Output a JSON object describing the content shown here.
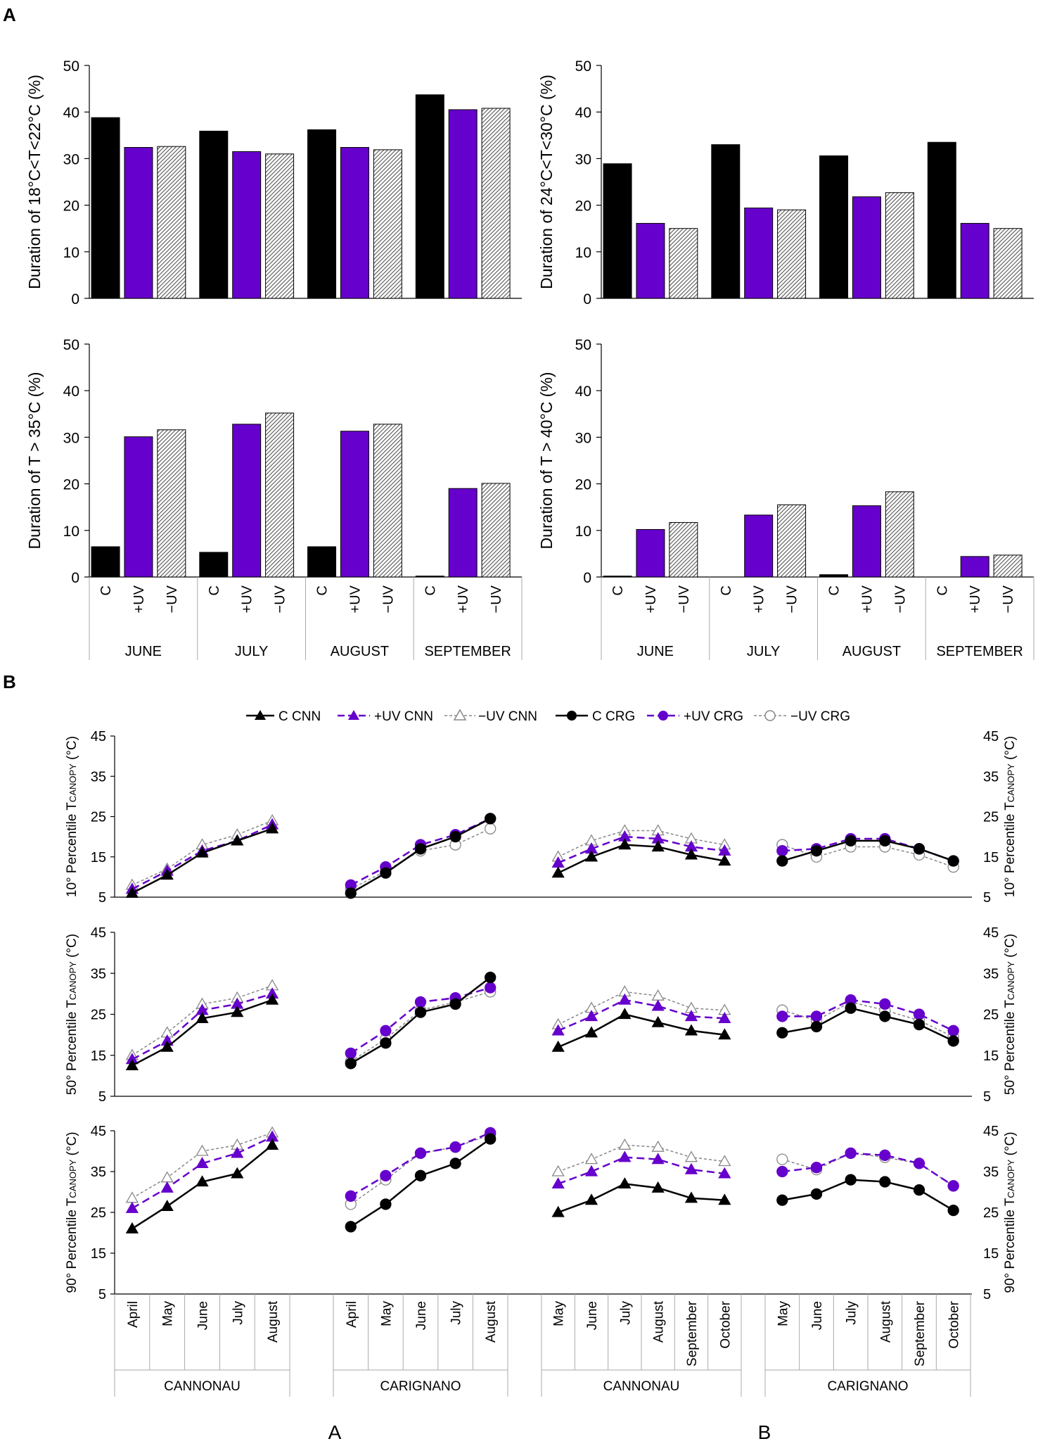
{
  "panel_labels": {
    "a": "A",
    "b": "B"
  },
  "sub_labels": {
    "left": "A",
    "right": "B"
  },
  "legend": {
    "c_cnn": "C CNN",
    "uvp_cnn": "+UV CNN",
    "uvm_cnn": "−UV CNN",
    "c_crg": "C CRG",
    "uvp_crg": "+UV CRG",
    "uvm_crg": "−UV CRG"
  },
  "colors": {
    "control": "#000000",
    "plus_uv": "#6600cc",
    "minus_uv": "#999999",
    "hatch": "#555555"
  },
  "bar_categories": {
    "treatments": [
      "C",
      "+UV",
      "−UV"
    ],
    "months": [
      "JUNE",
      "JULY",
      "AUGUST",
      "SEPTEMBER"
    ]
  },
  "line_groups": {
    "A": {
      "varieties": [
        "CANNONAU",
        "CARIGNANO"
      ],
      "months": [
        "April",
        "May",
        "June",
        "July",
        "August"
      ]
    },
    "B": {
      "varieties": [
        "CANNONAU",
        "CARIGNANO"
      ],
      "months": [
        "May",
        "June",
        "July",
        "August",
        "September",
        "October"
      ]
    }
  },
  "line_ylabels": {
    "p10": {
      "pre": "10° Percentile T",
      "sub": "CANOPY",
      "post": " (°C)"
    },
    "p50": {
      "pre": "50° Percentile T",
      "sub": "CANOPY",
      "post": " (°C)"
    },
    "p90": {
      "pre": "90° Percentile T",
      "sub": "CANOPY",
      "post": " (°C)"
    }
  },
  "chart_data": [
    {
      "type": "bar",
      "id": "a-tl",
      "title": "",
      "ylabel": "Duration of 18°C<T<22°C (%)",
      "ylim": [
        0,
        50
      ],
      "yticks": [
        0,
        10,
        20,
        30,
        40,
        50
      ],
      "categories": [
        "JUNE",
        "JULY",
        "AUGUST",
        "SEPTEMBER"
      ],
      "series": [
        {
          "name": "C",
          "values": [
            38.8,
            35.9,
            36.2,
            43.7
          ]
        },
        {
          "name": "+UV",
          "values": [
            32.4,
            31.5,
            32.4,
            40.5
          ]
        },
        {
          "name": "−UV",
          "values": [
            32.6,
            31.0,
            31.9,
            40.8
          ]
        }
      ]
    },
    {
      "type": "bar",
      "id": "a-tr",
      "title": "",
      "ylabel": "Duration of 24°C<T<30°C (%)",
      "ylim": [
        0,
        50
      ],
      "yticks": [
        0,
        10,
        20,
        30,
        40,
        50
      ],
      "categories": [
        "JUNE",
        "JULY",
        "AUGUST",
        "SEPTEMBER"
      ],
      "series": [
        {
          "name": "C",
          "values": [
            28.9,
            33.0,
            30.6,
            33.5
          ]
        },
        {
          "name": "+UV",
          "values": [
            16.1,
            19.4,
            21.8,
            16.1
          ]
        },
        {
          "name": "−UV",
          "values": [
            15.0,
            19.0,
            22.7,
            15.0
          ]
        }
      ]
    },
    {
      "type": "bar",
      "id": "a-bl",
      "title": "",
      "ylabel": "Duration of T > 35°C (%)",
      "ylim": [
        0,
        50
      ],
      "yticks": [
        0,
        10,
        20,
        30,
        40,
        50
      ],
      "categories": [
        "JUNE",
        "JULY",
        "AUGUST",
        "SEPTEMBER"
      ],
      "series": [
        {
          "name": "C",
          "values": [
            6.5,
            5.3,
            6.5,
            0.2
          ]
        },
        {
          "name": "+UV",
          "values": [
            30.1,
            32.8,
            31.3,
            19.0
          ]
        },
        {
          "name": "−UV",
          "values": [
            31.6,
            35.2,
            32.8,
            20.1
          ]
        }
      ]
    },
    {
      "type": "bar",
      "id": "a-br",
      "title": "",
      "ylabel": "Duration of T > 40°C (%)",
      "ylim": [
        0,
        50
      ],
      "yticks": [
        0,
        10,
        20,
        30,
        40,
        50
      ],
      "categories": [
        "JUNE",
        "JULY",
        "AUGUST",
        "SEPTEMBER"
      ],
      "series": [
        {
          "name": "C",
          "values": [
            0.2,
            0.0,
            0.5,
            0.0
          ]
        },
        {
          "name": "+UV",
          "values": [
            10.2,
            13.3,
            15.3,
            4.4
          ]
        },
        {
          "name": "−UV",
          "values": [
            11.7,
            15.5,
            18.3,
            4.7
          ]
        }
      ]
    },
    {
      "type": "line",
      "id": "b-p10",
      "ylabel": "10° Percentile TCANOPY (°C)",
      "ylim": [
        5,
        45
      ],
      "yticks": [
        5,
        15,
        25,
        35,
        45
      ],
      "A": {
        "CANNONAU": {
          "C": [
            6,
            10.5,
            16,
            19,
            22
          ],
          "+UV": [
            7,
            11.5,
            16.5,
            19,
            23
          ],
          "−UV": [
            8,
            12,
            18,
            20.5,
            24
          ]
        },
        "CARIGNANO": {
          "C": [
            6,
            11,
            17,
            20,
            24.5
          ],
          "+UV": [
            8,
            12.5,
            18,
            20.5,
            24.5
          ],
          "−UV": [
            7,
            11.5,
            16.5,
            18,
            22
          ]
        }
      },
      "B": {
        "CANNONAU": {
          "C": [
            11,
            15,
            18,
            17.5,
            15.5,
            14
          ],
          "+UV": [
            13.5,
            17,
            20,
            19.5,
            17.5,
            16.5
          ],
          "−UV": [
            15,
            19,
            21.5,
            21.5,
            19.5,
            18
          ]
        },
        "CARIGNANO": {
          "C": [
            14,
            16.5,
            19,
            19,
            17,
            14
          ],
          "+UV": [
            16.5,
            17,
            19.5,
            19.5,
            17,
            14
          ],
          "−UV": [
            18,
            15,
            17.5,
            17.5,
            15.5,
            12.5
          ]
        }
      }
    },
    {
      "type": "line",
      "id": "b-p50",
      "ylabel": "50° Percentile TCANOPY (°C)",
      "ylim": [
        5,
        45
      ],
      "yticks": [
        5,
        15,
        25,
        35,
        45
      ],
      "A": {
        "CANNONAU": {
          "C": [
            12.5,
            17,
            24,
            25.5,
            28.5
          ],
          "+UV": [
            14,
            18.5,
            26,
            27.5,
            30
          ],
          "−UV": [
            15,
            20.5,
            27.5,
            29,
            32
          ]
        },
        "CARIGNANO": {
          "C": [
            13,
            18,
            25.5,
            27.5,
            34
          ],
          "+UV": [
            15.5,
            21,
            28,
            29,
            31.5
          ],
          "−UV": [
            13.5,
            19,
            26,
            28,
            30.5
          ]
        }
      },
      "B": {
        "CANNONAU": {
          "C": [
            17,
            20.5,
            25,
            23,
            21,
            20
          ],
          "+UV": [
            21,
            24.5,
            28.5,
            27,
            24.5,
            24
          ],
          "−UV": [
            22.5,
            26.5,
            30.5,
            29.5,
            26.5,
            26
          ]
        },
        "CARIGNANO": {
          "C": [
            20.5,
            22,
            26.5,
            24.5,
            22.5,
            18.5
          ],
          "+UV": [
            24.5,
            24.5,
            28.5,
            27.5,
            25,
            21
          ],
          "−UV": [
            26,
            23.5,
            28,
            26,
            23.5,
            19.5
          ]
        }
      }
    },
    {
      "type": "line",
      "id": "b-p90",
      "ylabel": "90° Percentile TCANOPY (°C)",
      "ylim": [
        5,
        45
      ],
      "yticks": [
        5,
        15,
        25,
        35,
        45
      ],
      "A": {
        "CANNONAU": {
          "C": [
            21,
            26.5,
            32.5,
            34.5,
            41.5
          ],
          "+UV": [
            26,
            31,
            37,
            39.5,
            43.5
          ],
          "−UV": [
            28.5,
            33.5,
            40,
            41.5,
            44.5
          ]
        },
        "CARIGNANO": {
          "C": [
            21.5,
            27,
            34,
            37,
            43
          ],
          "+UV": [
            29,
            34,
            39.5,
            41,
            44.5
          ],
          "−UV": [
            27,
            33,
            39.5,
            41,
            44
          ]
        }
      },
      "B": {
        "CANNONAU": {
          "C": [
            25,
            28,
            32,
            31,
            28.5,
            28
          ],
          "+UV": [
            32,
            35,
            38.5,
            38,
            35.5,
            34.5
          ],
          "−UV": [
            35,
            38,
            41.5,
            41,
            38.5,
            37.5
          ]
        },
        "CARIGNANO": {
          "C": [
            28,
            29.5,
            33,
            32.5,
            30.5,
            25.5
          ],
          "+UV": [
            35,
            36,
            39.5,
            39,
            37,
            31.5
          ],
          "−UV": [
            38,
            35.5,
            39.5,
            38.5,
            37,
            31.5
          ]
        }
      }
    }
  ]
}
